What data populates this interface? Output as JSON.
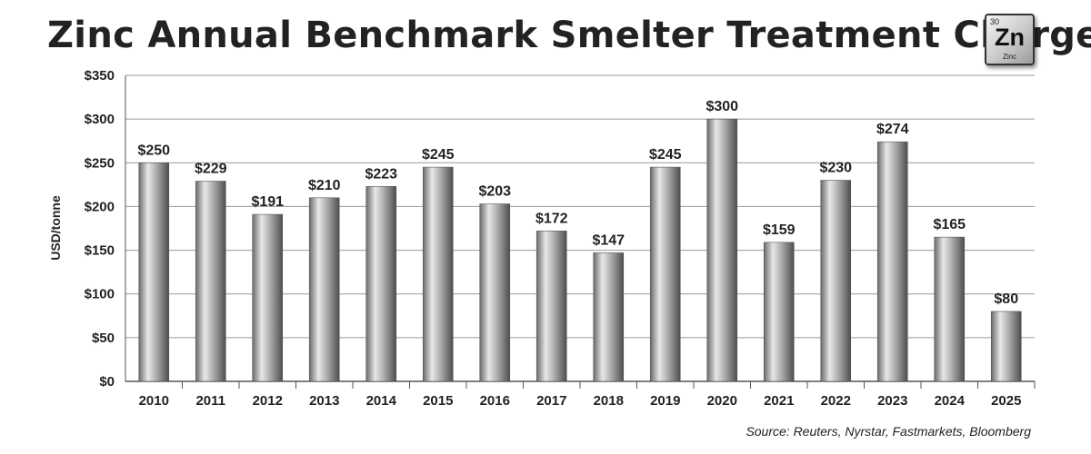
{
  "title": "Zinc Annual Benchmark Smelter Treatment Charges",
  "element_tile": {
    "number": "30",
    "symbol": "Zn",
    "name": "Zinc",
    "icon": "zinc-element-tile-icon"
  },
  "source": "Source: Reuters, Nyrstar, Fastmarkets, Bloomberg",
  "colors": {
    "bar_light": "#e6e6e6",
    "bar_dark": "#5f5f5f",
    "grid": "#9a9a9a",
    "text": "#222222"
  },
  "chart_data": {
    "type": "bar",
    "title": "Zinc Annual Benchmark Smelter Treatment Charges",
    "xlabel": "",
    "ylabel": "USD/tonne",
    "ylim": [
      0,
      350
    ],
    "yticks": [
      0,
      50,
      100,
      150,
      200,
      250,
      300,
      350
    ],
    "ytick_labels": [
      "$0",
      "$50",
      "$100",
      "$150",
      "$200",
      "$250",
      "$300",
      "$350"
    ],
    "grid": true,
    "categories": [
      "2010",
      "2011",
      "2012",
      "2013",
      "2014",
      "2015",
      "2016",
      "2017",
      "2018",
      "2019",
      "2020",
      "2021",
      "2022",
      "2023",
      "2024",
      "2025"
    ],
    "values": [
      250,
      229,
      191,
      210,
      223,
      245,
      203,
      172,
      147,
      245,
      300,
      159,
      230,
      274,
      165,
      80
    ],
    "data_labels": [
      "$250",
      "$229",
      "$191",
      "$210",
      "$223",
      "$245",
      "$203",
      "$172",
      "$147",
      "$245",
      "$300",
      "$159",
      "$230",
      "$274",
      "$165",
      "$80"
    ]
  }
}
